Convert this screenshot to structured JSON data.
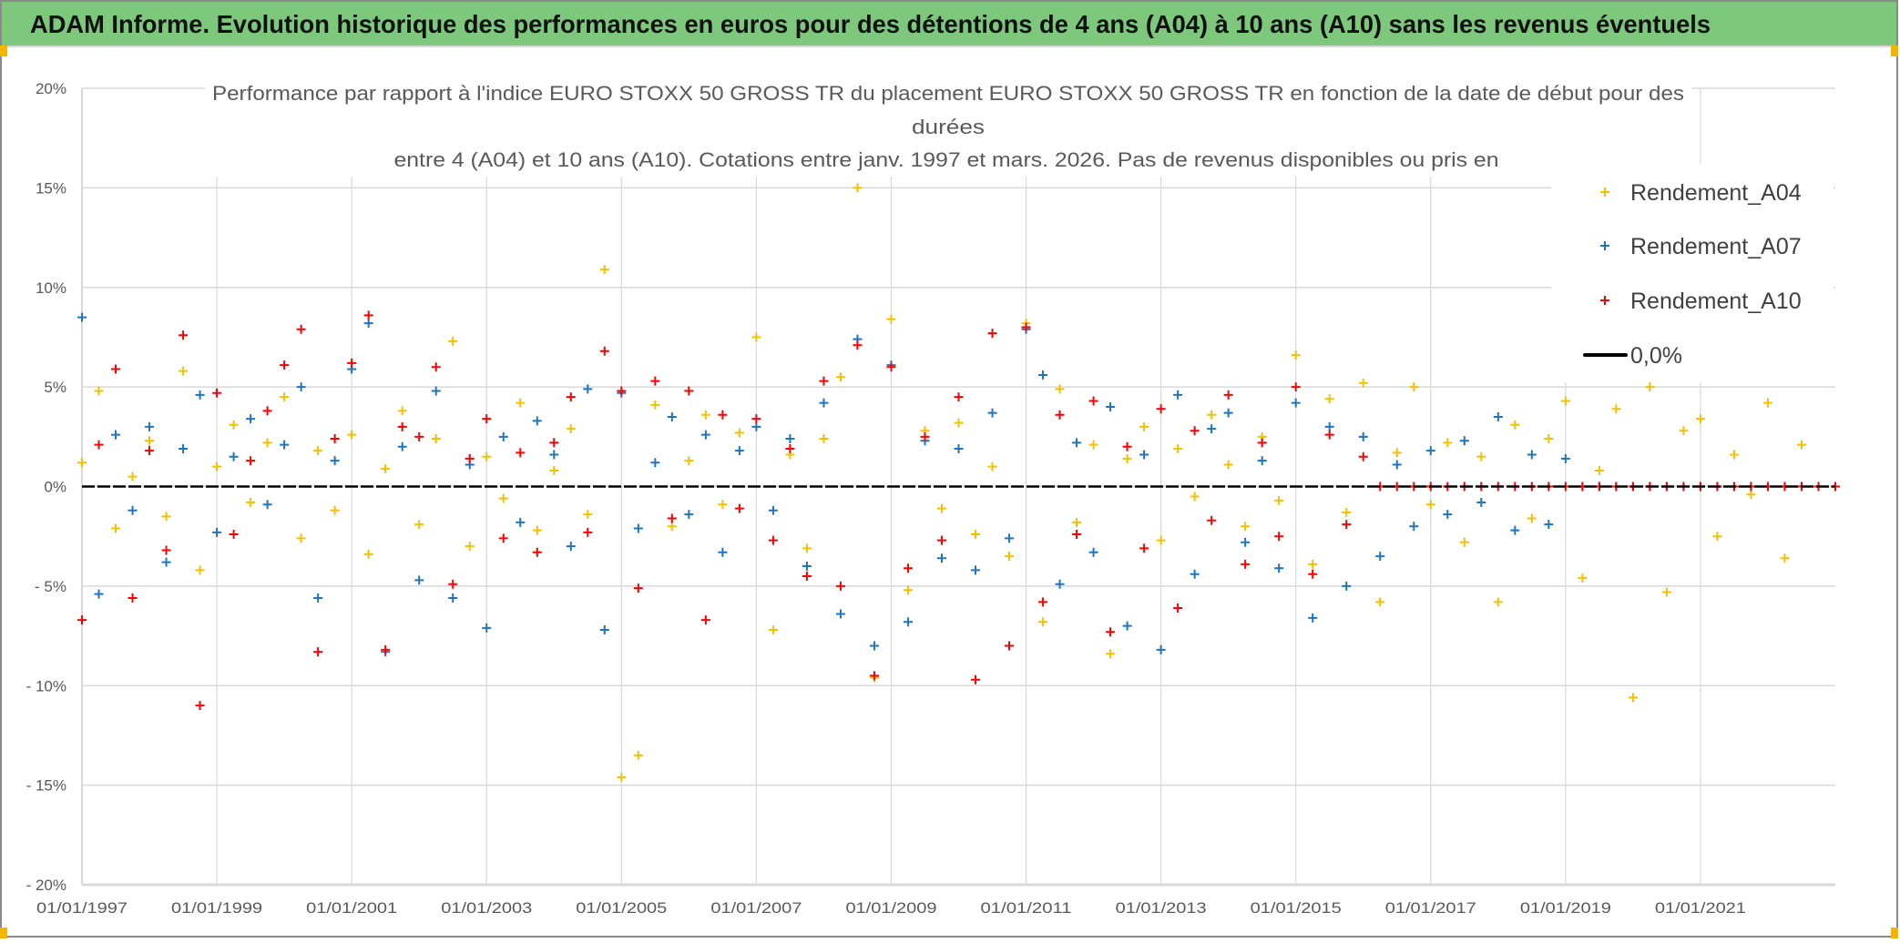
{
  "header": {
    "title": "ADAM Informe. Evolution historique des performances en euros pour des détentions de 4 ans (A04) à 10 ans (A10) sans les revenus éventuels",
    "background": "#7ec87e"
  },
  "chart_data": {
    "type": "scatter",
    "title_lines": [
      "Performance par rapport à l'indice EURO STOXX 50 GROSS TR  du placement EURO STOXX 50 GROSS TR en fonction de la date de début pour des",
      "durées",
      "entre 4 (A04) et 10 ans (A10). Cotations entre janv. 1997 et mars. 2026. Pas de revenus disponibles ou pris en"
    ],
    "xlabel": "",
    "ylabel": "",
    "x_type": "date",
    "xlim": [
      "1997-01-01",
      "2023-01-01"
    ],
    "ylim": [
      -20,
      20
    ],
    "y_unit": "%",
    "grid": true,
    "legend_position": "right",
    "x_ticks": [
      "01/01/1997",
      "01/01/1999",
      "01/01/2001",
      "01/01/2003",
      "01/01/2005",
      "01/01/2007",
      "01/01/2009",
      "01/01/2011",
      "01/01/2013",
      "01/01/2015",
      "01/01/2017",
      "01/01/2019",
      "01/01/2021"
    ],
    "y_ticks": [
      {
        "v": 20,
        "label": "20%"
      },
      {
        "v": 15,
        "label": "15%"
      },
      {
        "v": 10,
        "label": "10%"
      },
      {
        "v": 5,
        "label": "5%"
      },
      {
        "v": 0,
        "label": "0%"
      },
      {
        "v": -5,
        "label": "- 5%"
      },
      {
        "v": -10,
        "label": "- 10%"
      },
      {
        "v": -15,
        "label": "- 15%"
      },
      {
        "v": -20,
        "label": "- 20%"
      }
    ],
    "x": [
      "1997-01",
      "1997-04",
      "1997-07",
      "1997-10",
      "1998-01",
      "1998-04",
      "1998-07",
      "1998-10",
      "1999-01",
      "1999-04",
      "1999-07",
      "1999-10",
      "2000-01",
      "2000-04",
      "2000-07",
      "2000-10",
      "2001-01",
      "2001-04",
      "2001-07",
      "2001-10",
      "2002-01",
      "2002-04",
      "2002-07",
      "2002-10",
      "2003-01",
      "2003-04",
      "2003-07",
      "2003-10",
      "2004-01",
      "2004-04",
      "2004-07",
      "2004-10",
      "2005-01",
      "2005-04",
      "2005-07",
      "2005-10",
      "2006-01",
      "2006-04",
      "2006-07",
      "2006-10",
      "2007-01",
      "2007-04",
      "2007-07",
      "2007-10",
      "2008-01",
      "2008-04",
      "2008-07",
      "2008-10",
      "2009-01",
      "2009-04",
      "2009-07",
      "2009-10",
      "2010-01",
      "2010-04",
      "2010-07",
      "2010-10",
      "2011-01",
      "2011-04",
      "2011-07",
      "2011-10",
      "2012-01",
      "2012-04",
      "2012-07",
      "2012-10",
      "2013-01",
      "2013-04",
      "2013-07",
      "2013-10",
      "2014-01",
      "2014-04",
      "2014-07",
      "2014-10",
      "2015-01",
      "2015-04",
      "2015-07",
      "2015-10",
      "2016-01",
      "2016-04",
      "2016-07",
      "2016-10",
      "2017-01",
      "2017-04",
      "2017-07",
      "2017-10",
      "2018-01",
      "2018-04",
      "2018-07",
      "2018-10",
      "2019-01",
      "2019-04",
      "2019-07",
      "2019-10",
      "2020-01",
      "2020-04",
      "2020-07",
      "2020-10",
      "2021-01",
      "2021-04",
      "2021-07",
      "2021-10",
      "2022-01",
      "2022-04",
      "2022-07",
      "2022-10",
      "2023-01"
    ],
    "series": [
      {
        "name": "Rendement_A04",
        "color": "#f5c000",
        "marker": "plus",
        "values": [
          1.2,
          4.8,
          -2.1,
          0.5,
          2.3,
          -1.5,
          5.8,
          -4.2,
          1.0,
          3.1,
          -0.8,
          2.2,
          4.5,
          -2.6,
          1.8,
          -1.2,
          2.6,
          -3.4,
          0.9,
          3.8,
          -1.9,
          2.4,
          7.3,
          -3.0,
          1.5,
          -0.6,
          4.2,
          -2.2,
          0.8,
          2.9,
          -1.4,
          10.9,
          -14.6,
          -13.5,
          4.1,
          -2.0,
          1.3,
          3.6,
          -0.9,
          2.7,
          7.5,
          -7.2,
          1.6,
          -3.1,
          2.4,
          5.5,
          15.0,
          -9.6,
          8.4,
          -5.2,
          2.8,
          -1.1,
          3.2,
          -2.4,
          1.0,
          -3.5,
          8.2,
          -6.8,
          4.9,
          -1.8,
          2.1,
          -8.4,
          1.4,
          3.0,
          -2.7,
          1.9,
          -0.5,
          3.6,
          1.1,
          -2.0,
          2.5,
          -0.7,
          6.6,
          -3.9,
          4.4,
          -1.3,
          5.2,
          -5.8,
          1.7,
          5.0,
          -0.9,
          2.2,
          -2.8,
          1.5,
          -5.8,
          3.1,
          -1.6,
          2.4,
          4.3,
          -4.6,
          0.8,
          3.9,
          -10.6,
          5.0,
          -5.3,
          2.8,
          3.4,
          -2.5,
          1.6,
          -0.4,
          4.2,
          -3.6,
          2.1,
          0.0,
          0.0
        ]
      },
      {
        "name": "Rendement_A07",
        "color": "#1f74c0",
        "marker": "plus",
        "values": [
          8.5,
          -5.4,
          2.6,
          -1.2,
          3.0,
          -3.8,
          1.9,
          4.6,
          -2.3,
          1.5,
          3.4,
          -0.9,
          2.1,
          5.0,
          -5.6,
          1.3,
          5.9,
          8.2,
          -8.3,
          2.0,
          -4.7,
          4.8,
          -5.6,
          1.1,
          -7.1,
          2.5,
          -1.8,
          3.3,
          1.6,
          -3.0,
          4.9,
          -7.2,
          4.7,
          -2.1,
          1.2,
          3.5,
          -1.4,
          2.6,
          -3.3,
          1.8,
          3.0,
          -1.2,
          2.4,
          -4.0,
          4.2,
          -6.4,
          7.4,
          -8.0,
          6.1,
          -6.8,
          2.3,
          -3.6,
          1.9,
          -4.2,
          3.7,
          -2.6,
          7.9,
          5.6,
          -4.9,
          2.2,
          -3.3,
          4.0,
          -7.0,
          1.6,
          -8.2,
          4.6,
          -4.4,
          2.9,
          3.7,
          -2.8,
          1.3,
          -4.1,
          4.2,
          -6.6,
          3.0,
          -5.0,
          2.5,
          -3.5,
          1.1,
          -2.0,
          1.8,
          -1.4,
          2.3,
          -0.8,
          3.5,
          -2.2,
          1.6,
          -1.9,
          1.4,
          0.0,
          0.0,
          0.0,
          0.0,
          0.0,
          0.0,
          0.0,
          0.0,
          0.0,
          0.0,
          0.0,
          0.0,
          0.0,
          0.0,
          0.0,
          0.0
        ]
      },
      {
        "name": "Rendement_A10",
        "color": "#ff0000",
        "marker": "plus",
        "values": [
          -6.7,
          2.1,
          5.9,
          -5.6,
          1.8,
          -3.2,
          7.6,
          -11.0,
          4.7,
          -2.4,
          1.3,
          3.8,
          6.1,
          7.9,
          -8.3,
          2.4,
          6.2,
          8.6,
          -8.2,
          3.0,
          2.5,
          6.0,
          -4.9,
          1.4,
          3.4,
          -2.6,
          1.7,
          -3.3,
          2.2,
          4.5,
          -2.3,
          6.8,
          4.8,
          -5.1,
          5.3,
          -1.6,
          4.8,
          -6.7,
          3.6,
          -1.1,
          3.4,
          -2.7,
          1.9,
          -4.5,
          5.3,
          -5.0,
          7.1,
          -9.5,
          6.0,
          -4.1,
          2.5,
          -2.7,
          4.5,
          -9.7,
          7.7,
          -8.0,
          8.0,
          -5.8,
          3.6,
          -2.4,
          4.3,
          -7.3,
          2.0,
          -3.1,
          3.9,
          -6.1,
          2.8,
          -1.7,
          4.6,
          -3.9,
          2.2,
          -2.5,
          5.0,
          -4.4,
          2.6,
          -1.9,
          1.5,
          0.0,
          0.0,
          0.0,
          0.0,
          0.0,
          0.0,
          0.0,
          0.0,
          0.0,
          0.0,
          0.0,
          0.0,
          0.0,
          0.0,
          0.0,
          0.0,
          0.0,
          0.0,
          0.0,
          0.0,
          0.0,
          0.0,
          0.0,
          0.0,
          0.0,
          0.0,
          0.0,
          0.0
        ]
      }
    ],
    "reference_line": {
      "name": "0,0%",
      "value": 0,
      "color": "#000000"
    }
  }
}
